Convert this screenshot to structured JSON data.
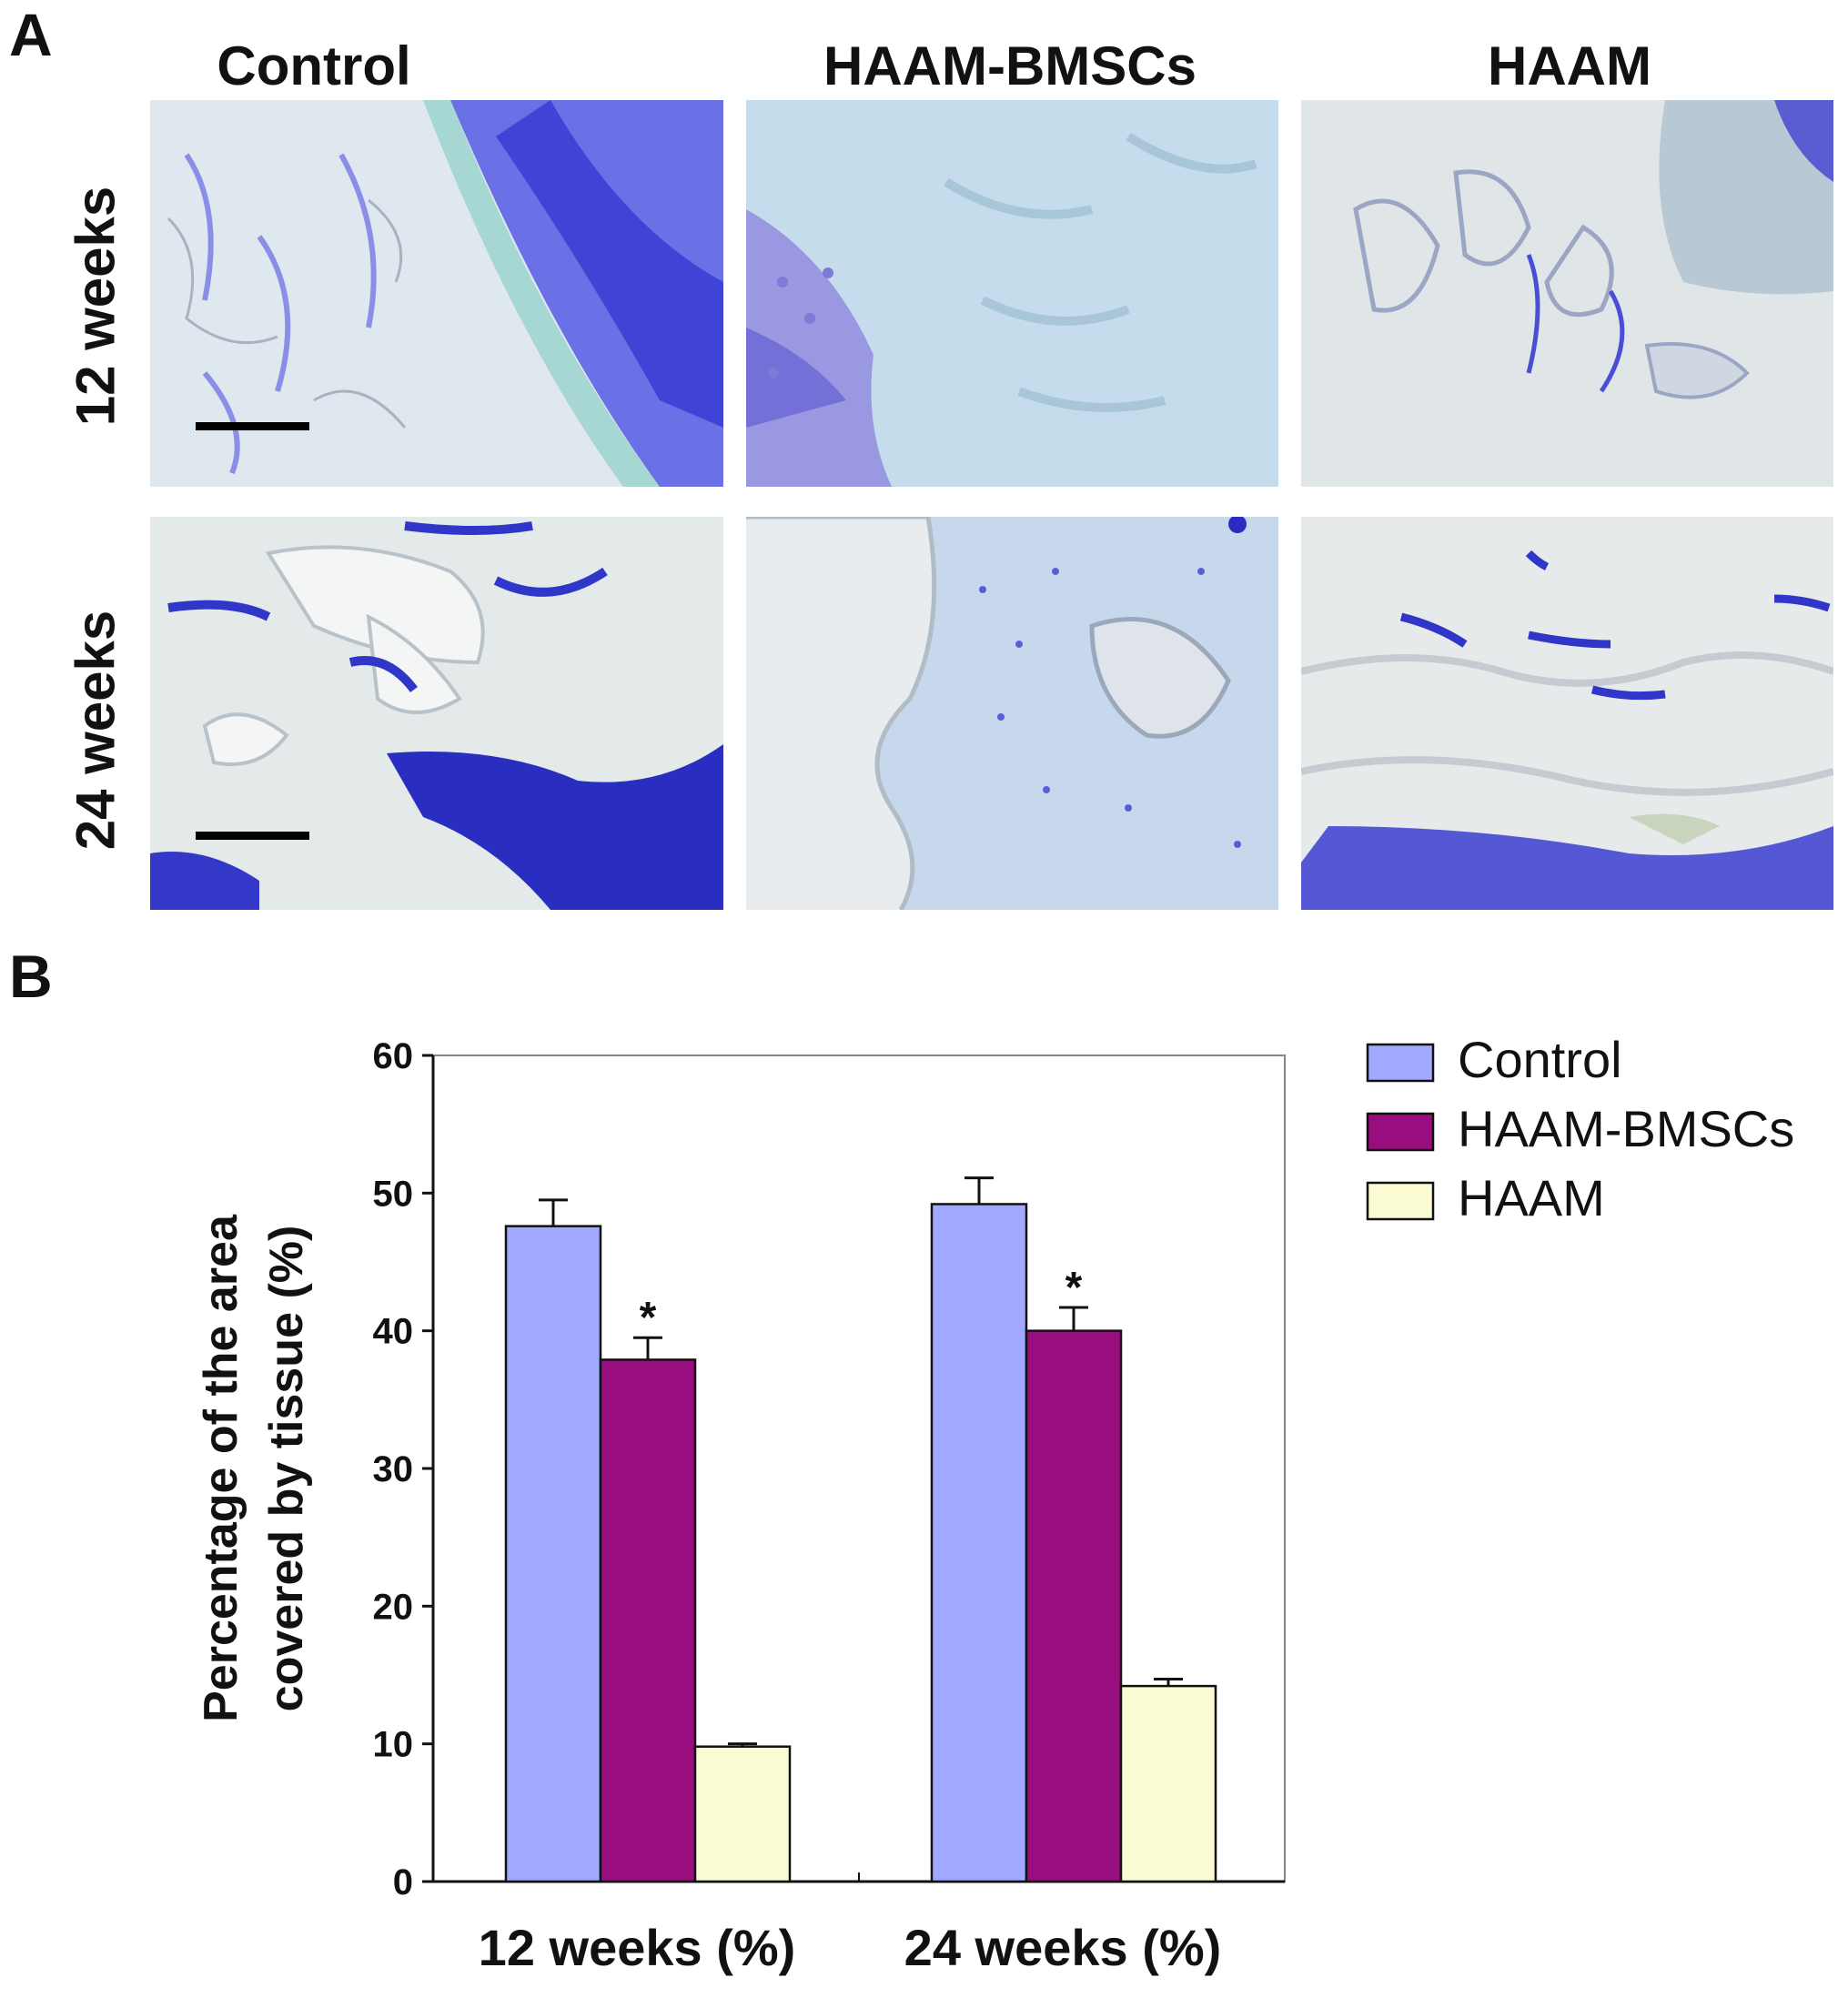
{
  "panel_a": {
    "letter": "A",
    "columns": [
      "Control",
      "HAAM-BMSCs",
      "HAAM"
    ],
    "rows": [
      "12 weeks",
      "24 weeks"
    ]
  },
  "panel_b": {
    "letter": "B"
  },
  "colors": {
    "control": "#a0a8ff",
    "haam_bmscs": "#990e7e",
    "haam": "#fbfbd3",
    "stain_blue": "#3a3ed8",
    "tissue_bg": "#dfe8ee"
  },
  "chart_data": {
    "type": "bar",
    "categories": [
      "12 weeks (%)",
      "24 weeks (%)"
    ],
    "series": [
      {
        "name": "Control",
        "values": [
          47.6,
          49.2
        ],
        "errors": [
          1.9,
          1.9
        ],
        "marks": [
          "",
          ""
        ]
      },
      {
        "name": "HAAM-BMSCs",
        "values": [
          37.9,
          40.0
        ],
        "errors": [
          1.6,
          1.7
        ],
        "marks": [
          "*",
          "*"
        ]
      },
      {
        "name": "HAAM",
        "values": [
          9.8,
          14.2
        ],
        "errors": [
          0.2,
          0.5
        ],
        "marks": [
          "",
          ""
        ]
      }
    ],
    "ylabel_lines": [
      "Percentage of the area",
      "covered by tissue (%)"
    ],
    "ylim": [
      0,
      60
    ],
    "yticks": [
      0,
      10,
      20,
      30,
      40,
      50,
      60
    ],
    "legend_position": "right"
  }
}
